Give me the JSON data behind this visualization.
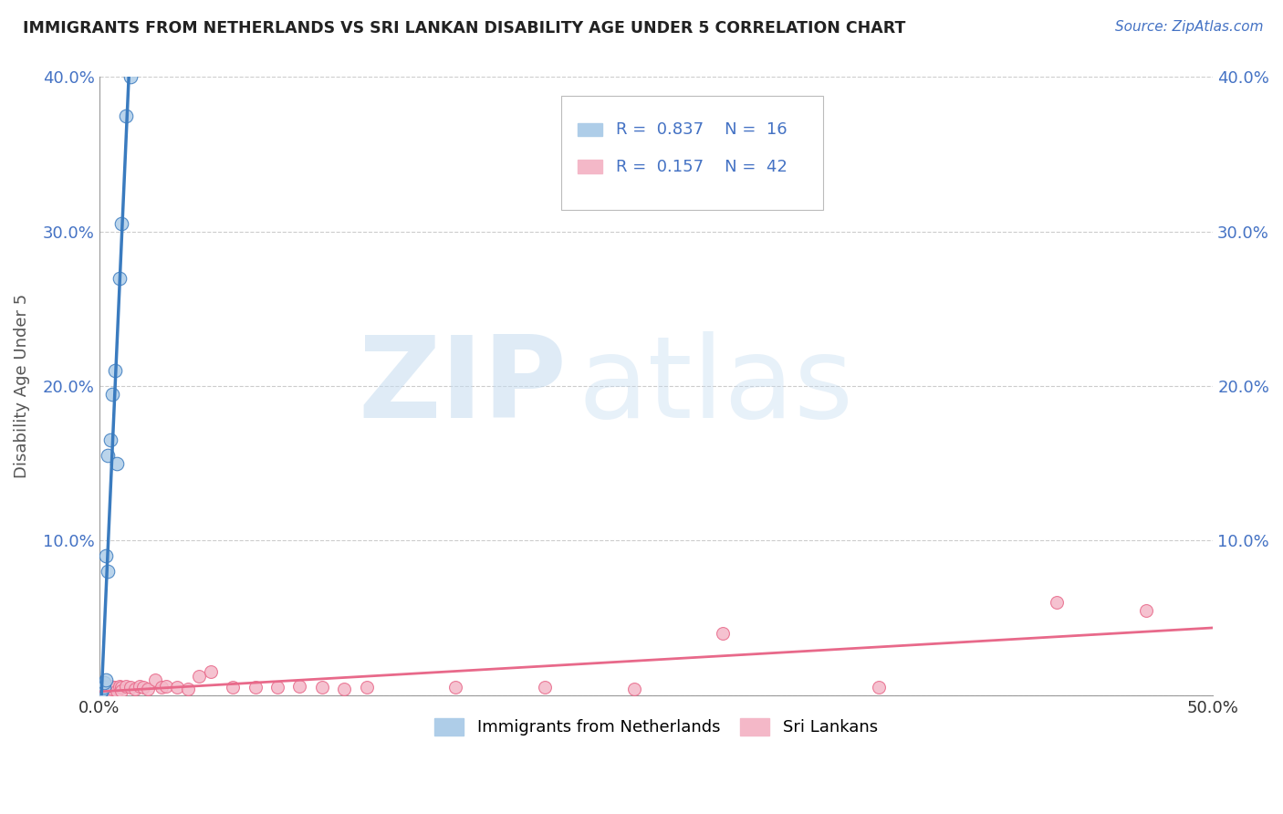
{
  "title": "IMMIGRANTS FROM NETHERLANDS VS SRI LANKAN DISABILITY AGE UNDER 5 CORRELATION CHART",
  "source": "Source: ZipAtlas.com",
  "xlim": [
    0.0,
    0.5
  ],
  "ylim": [
    0.0,
    0.4
  ],
  "ylabel": "Disability Age Under 5",
  "blue_R": 0.837,
  "blue_N": 16,
  "pink_R": 0.157,
  "pink_N": 42,
  "blue_label": "Immigrants from Netherlands",
  "pink_label": "Sri Lankans",
  "blue_color": "#aecde8",
  "blue_line_color": "#3a7bbf",
  "pink_color": "#f4b8c8",
  "pink_line_color": "#e8698a",
  "watermark_zip": "ZIP",
  "watermark_atlas": "atlas",
  "background_color": "#ffffff",
  "grid_color": "#cccccc",
  "tick_color": "#4472c4",
  "blue_x": [
    0.001,
    0.001,
    0.002,
    0.002,
    0.003,
    0.003,
    0.004,
    0.004,
    0.005,
    0.006,
    0.007,
    0.008,
    0.009,
    0.01,
    0.012,
    0.014
  ],
  "blue_y": [
    0.002,
    0.003,
    0.005,
    0.008,
    0.01,
    0.09,
    0.08,
    0.155,
    0.165,
    0.195,
    0.21,
    0.15,
    0.27,
    0.305,
    0.375,
    0.4
  ],
  "pink_x": [
    0.001,
    0.001,
    0.002,
    0.002,
    0.003,
    0.003,
    0.004,
    0.005,
    0.005,
    0.006,
    0.007,
    0.008,
    0.009,
    0.01,
    0.01,
    0.012,
    0.014,
    0.016,
    0.018,
    0.02,
    0.022,
    0.025,
    0.028,
    0.03,
    0.035,
    0.04,
    0.045,
    0.05,
    0.06,
    0.07,
    0.08,
    0.09,
    0.1,
    0.11,
    0.12,
    0.16,
    0.2,
    0.24,
    0.28,
    0.35,
    0.43,
    0.47
  ],
  "pink_y": [
    0.003,
    0.005,
    0.003,
    0.005,
    0.003,
    0.006,
    0.004,
    0.003,
    0.006,
    0.004,
    0.005,
    0.003,
    0.006,
    0.005,
    0.003,
    0.006,
    0.005,
    0.004,
    0.006,
    0.005,
    0.004,
    0.01,
    0.005,
    0.006,
    0.005,
    0.004,
    0.012,
    0.015,
    0.005,
    0.005,
    0.005,
    0.006,
    0.005,
    0.004,
    0.005,
    0.005,
    0.005,
    0.004,
    0.04,
    0.005,
    0.06,
    0.055
  ]
}
